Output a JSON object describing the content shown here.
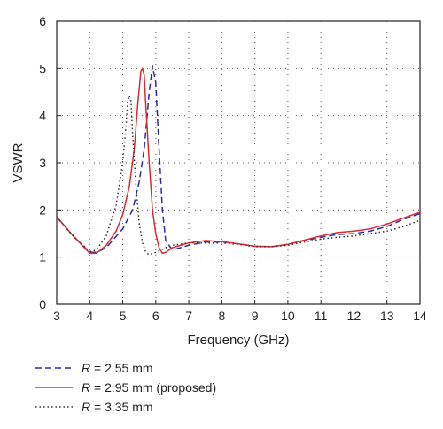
{
  "chart_data": {
    "type": "line",
    "xlabel": "Frequency (GHz)",
    "ylabel": "VSWR",
    "xlim": [
      3,
      14
    ],
    "ylim": [
      0,
      6
    ],
    "xticks": [
      "3",
      "4",
      "5",
      "6",
      "7",
      "8",
      "9",
      "10",
      "11",
      "12",
      "13",
      "14"
    ],
    "yticks": [
      "0",
      "1",
      "2",
      "3",
      "4",
      "5",
      "6"
    ],
    "grid": true,
    "legend_position": "bottom-left, below plot",
    "series": [
      {
        "name_var": "R",
        "name_rest": " = 2.55 mm",
        "color": "#2a2aa8",
        "style": "dashed",
        "x": [
          3.0,
          3.5,
          4.0,
          4.2,
          4.5,
          5.0,
          5.3,
          5.5,
          5.65,
          5.8,
          5.9,
          6.0,
          6.1,
          6.2,
          6.3,
          6.5,
          7.0,
          7.5,
          8.0,
          8.5,
          9.0,
          9.5,
          10.0,
          10.5,
          11.0,
          11.5,
          12.0,
          12.5,
          13.0,
          13.5,
          14.0
        ],
        "y": [
          1.85,
          1.45,
          1.1,
          1.1,
          1.2,
          1.6,
          2.0,
          2.6,
          3.3,
          4.5,
          5.05,
          4.7,
          3.3,
          2.0,
          1.35,
          1.15,
          1.25,
          1.32,
          1.32,
          1.28,
          1.23,
          1.22,
          1.27,
          1.35,
          1.42,
          1.48,
          1.5,
          1.55,
          1.65,
          1.8,
          1.92
        ]
      },
      {
        "name_var": "R",
        "name_rest": " = 2.95 mm (proposed)",
        "color": "#e0282e",
        "style": "solid",
        "x": [
          3.0,
          3.5,
          4.0,
          4.2,
          4.5,
          4.8,
          5.0,
          5.2,
          5.35,
          5.45,
          5.55,
          5.6,
          5.65,
          5.7,
          5.8,
          5.9,
          6.0,
          6.1,
          6.2,
          6.3,
          6.5,
          7.0,
          7.5,
          8.0,
          8.5,
          9.0,
          9.5,
          10.0,
          10.5,
          11.0,
          11.5,
          12.0,
          12.5,
          13.0,
          13.5,
          14.0
        ],
        "y": [
          1.85,
          1.45,
          1.08,
          1.08,
          1.25,
          1.55,
          1.9,
          2.5,
          3.3,
          4.2,
          4.95,
          5.0,
          4.85,
          4.2,
          3.0,
          2.0,
          1.5,
          1.2,
          1.08,
          1.1,
          1.2,
          1.3,
          1.35,
          1.33,
          1.28,
          1.23,
          1.22,
          1.27,
          1.36,
          1.45,
          1.52,
          1.55,
          1.6,
          1.7,
          1.83,
          1.95
        ]
      },
      {
        "name_var": "R",
        "name_rest": " = 3.35 mm",
        "color": "#333333",
        "style": "dotted",
        "x": [
          3.0,
          3.5,
          4.0,
          4.2,
          4.5,
          4.8,
          5.0,
          5.1,
          5.15,
          5.2,
          5.25,
          5.3,
          5.4,
          5.5,
          5.6,
          5.7,
          5.8,
          6.0,
          6.3,
          6.5,
          7.0,
          7.5,
          8.0,
          8.5,
          9.0,
          9.5,
          10.0,
          10.5,
          11.0,
          11.5,
          12.0,
          12.5,
          13.0,
          13.5,
          14.0
        ],
        "y": [
          1.85,
          1.45,
          1.12,
          1.15,
          1.45,
          2.1,
          3.0,
          3.8,
          4.3,
          4.42,
          4.3,
          3.6,
          2.5,
          1.7,
          1.3,
          1.1,
          1.05,
          1.1,
          1.2,
          1.25,
          1.3,
          1.3,
          1.3,
          1.27,
          1.22,
          1.22,
          1.25,
          1.32,
          1.38,
          1.42,
          1.45,
          1.5,
          1.55,
          1.65,
          1.78
        ]
      }
    ]
  }
}
